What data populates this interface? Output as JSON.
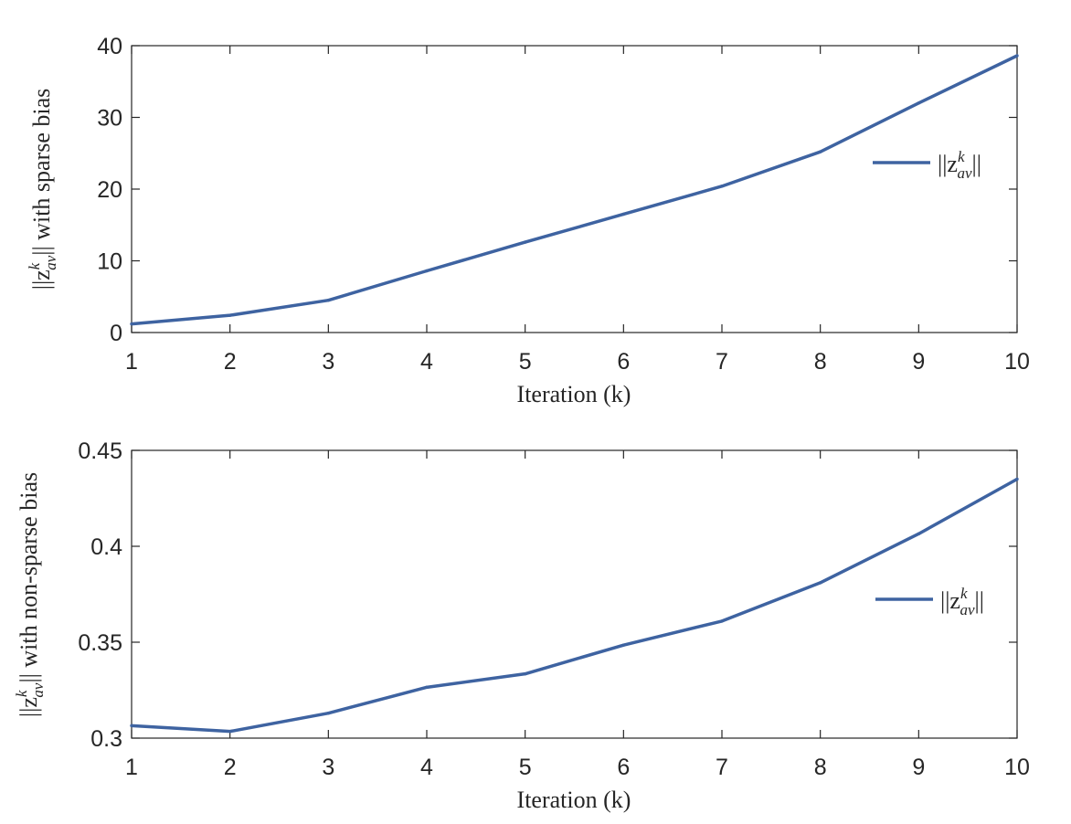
{
  "chart_data": [
    {
      "type": "line",
      "xlabel": "Iteration (k)",
      "ylabel": {
        "pre": "||z",
        "sup": "k",
        "sub": "av",
        "post": "|| with sparse bias"
      },
      "xlim": [
        1,
        10
      ],
      "ylim": [
        0,
        40
      ],
      "xticks": [
        "1",
        "2",
        "3",
        "4",
        "5",
        "6",
        "7",
        "8",
        "9",
        "10"
      ],
      "yticks": [
        "0",
        "10",
        "20",
        "30",
        "40"
      ],
      "grid": false,
      "legend_position": "right",
      "color": "#3E63A1",
      "series": [
        {
          "name": {
            "pre": "||z",
            "sup": "k",
            "sub": "av",
            "post": "||"
          },
          "x": [
            1,
            2,
            3,
            4,
            5,
            6,
            7,
            8,
            9,
            10
          ],
          "y": [
            1.2,
            2.4,
            4.5,
            8.6,
            12.6,
            16.5,
            20.4,
            25.2,
            32.0,
            38.6
          ]
        }
      ]
    },
    {
      "type": "line",
      "xlabel": "Iteration (k)",
      "ylabel": {
        "pre": "||z",
        "sup": "k",
        "sub": "av",
        "post": "|| with non-sparse bias"
      },
      "xlim": [
        1,
        10
      ],
      "ylim": [
        0.3,
        0.45
      ],
      "xticks": [
        "1",
        "2",
        "3",
        "4",
        "5",
        "6",
        "7",
        "8",
        "9",
        "10"
      ],
      "yticks": [
        "0.3",
        "0.35",
        "0.4",
        "0.45"
      ],
      "grid": false,
      "legend_position": "right",
      "color": "#3E63A1",
      "series": [
        {
          "name": {
            "pre": "||z",
            "sup": "k",
            "sub": "av",
            "post": "||"
          },
          "x": [
            1,
            2,
            3,
            4,
            5,
            6,
            7,
            8,
            9,
            10
          ],
          "y": [
            0.3065,
            0.3035,
            0.313,
            0.3265,
            0.3335,
            0.3485,
            0.361,
            0.381,
            0.4065,
            0.435
          ]
        }
      ]
    }
  ]
}
